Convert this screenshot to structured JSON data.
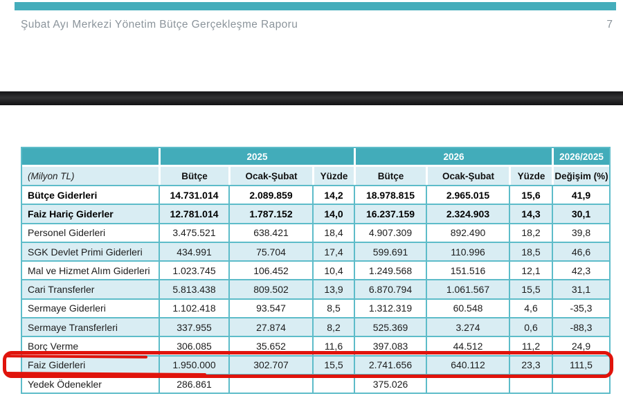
{
  "header": {
    "title": "Şubat Ayı Merkezi Yönetim Bütçe Gerçekleşme Raporu",
    "page_number": "7"
  },
  "colors": {
    "teal_bar": "#45adbb",
    "table_header_teal": "#42acba",
    "table_border_teal": "#5dbcc9",
    "row_light_blue": "#d9edf3",
    "annotation_red": "#e0140c",
    "header_text_gray": "#8b949b"
  },
  "table": {
    "unit_label": "(Milyon TL)",
    "group_headers": [
      "2025",
      "2026",
      "2026/2025"
    ],
    "col_headers": [
      "Bütçe",
      "Ocak-Şubat",
      "Yüzde",
      "Bütçe",
      "Ocak-Şubat",
      "Yüzde",
      "Değişim (%)"
    ],
    "rows": [
      {
        "label": "Bütçe Giderleri",
        "bold": true,
        "highlighted": false,
        "values": [
          "14.731.014",
          "2.089.859",
          "14,2",
          "18.978.815",
          "2.965.015",
          "15,6",
          "41,9"
        ]
      },
      {
        "label": "Faiz Hariç Giderler",
        "bold": true,
        "highlighted": false,
        "values": [
          "12.781.014",
          "1.787.152",
          "14,0",
          "16.237.159",
          "2.324.903",
          "14,3",
          "30,1"
        ]
      },
      {
        "label": "Personel Giderleri",
        "bold": false,
        "highlighted": false,
        "values": [
          "3.475.521",
          "638.421",
          "18,4",
          "4.907.309",
          "892.490",
          "18,2",
          "39,8"
        ]
      },
      {
        "label": "SGK Devlet Primi Giderleri",
        "bold": false,
        "highlighted": false,
        "values": [
          "434.991",
          "75.704",
          "17,4",
          "599.691",
          "110.996",
          "18,5",
          "46,6"
        ]
      },
      {
        "label": "Mal ve Hizmet Alım Giderleri",
        "bold": false,
        "highlighted": false,
        "values": [
          "1.023.745",
          "106.452",
          "10,4",
          "1.249.568",
          "151.516",
          "12,1",
          "42,3"
        ]
      },
      {
        "label": "Cari Transferler",
        "bold": false,
        "highlighted": false,
        "values": [
          "5.813.438",
          "809.502",
          "13,9",
          "6.870.794",
          "1.061.567",
          "15,5",
          "31,1"
        ]
      },
      {
        "label": "Sermaye Giderleri",
        "bold": false,
        "highlighted": false,
        "values": [
          "1.102.418",
          "93.547",
          "8,5",
          "1.312.319",
          "60.548",
          "4,6",
          "-35,3"
        ]
      },
      {
        "label": "Sermaye Transferleri",
        "bold": false,
        "highlighted": false,
        "values": [
          "337.955",
          "27.874",
          "8,2",
          "525.369",
          "3.274",
          "0,6",
          "-88,3"
        ]
      },
      {
        "label": "Borç Verme",
        "bold": false,
        "highlighted": false,
        "values": [
          "306.085",
          "35.652",
          "11,6",
          "397.083",
          "44.512",
          "11,2",
          "24,9"
        ]
      },
      {
        "label": "Faiz Giderleri",
        "bold": false,
        "highlighted": true,
        "values": [
          "1.950.000",
          "302.707",
          "15,5",
          "2.741.656",
          "640.112",
          "23,3",
          "111,5"
        ]
      },
      {
        "label": "Yedek Ödenekler",
        "bold": false,
        "highlighted": false,
        "values": [
          "286.861",
          "",
          "",
          "375.026",
          "",
          "",
          ""
        ]
      }
    ]
  }
}
